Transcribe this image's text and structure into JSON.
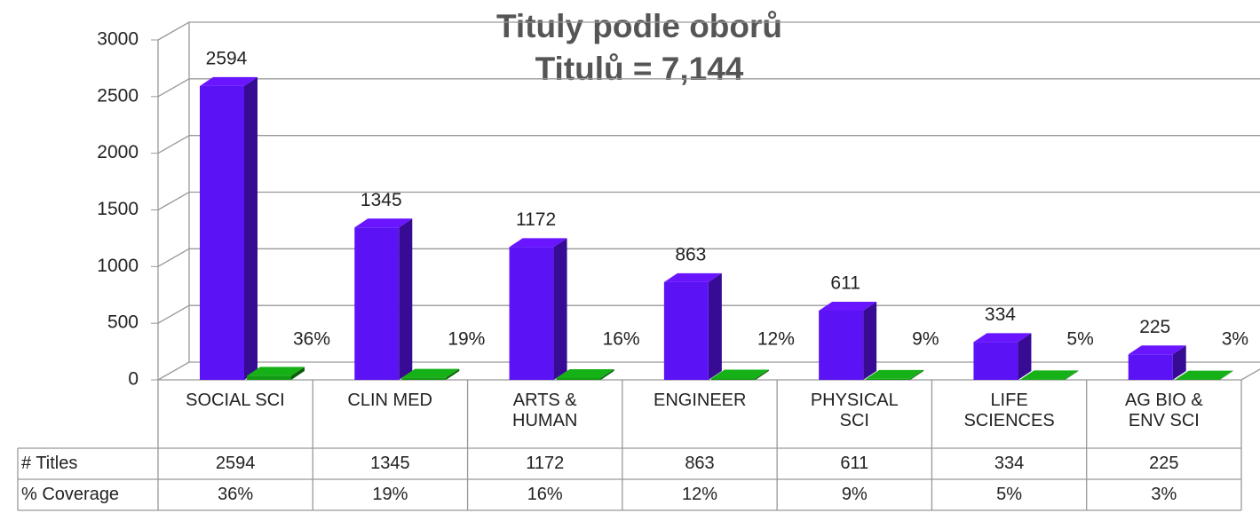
{
  "chart_data": {
    "type": "bar3d",
    "title": "Tituly podle oborů",
    "subtitle": "Titulů = 7,144",
    "categories": [
      "SOCIAL SCI",
      "CLIN MED",
      "ARTS & HUMAN",
      "ENGINEER",
      "PHYSICAL SCI",
      "LIFE SCIENCES",
      "AG BIO & ENV SCI"
    ],
    "series": [
      {
        "name": "# Titles",
        "color": "#5b12f5",
        "values": [
          2594,
          1345,
          1172,
          863,
          611,
          334,
          225
        ]
      },
      {
        "name": "% Coverage",
        "color": "#139a13",
        "values": [
          36,
          19,
          16,
          12,
          9,
          5,
          3
        ],
        "value_labels": [
          "36%",
          "19%",
          "16%",
          "12%",
          "9%",
          "5%",
          "3%"
        ]
      }
    ],
    "ylim": [
      0,
      3000
    ],
    "yticks": [
      0,
      500,
      1000,
      1500,
      2000,
      2500,
      3000
    ],
    "grid": true
  }
}
